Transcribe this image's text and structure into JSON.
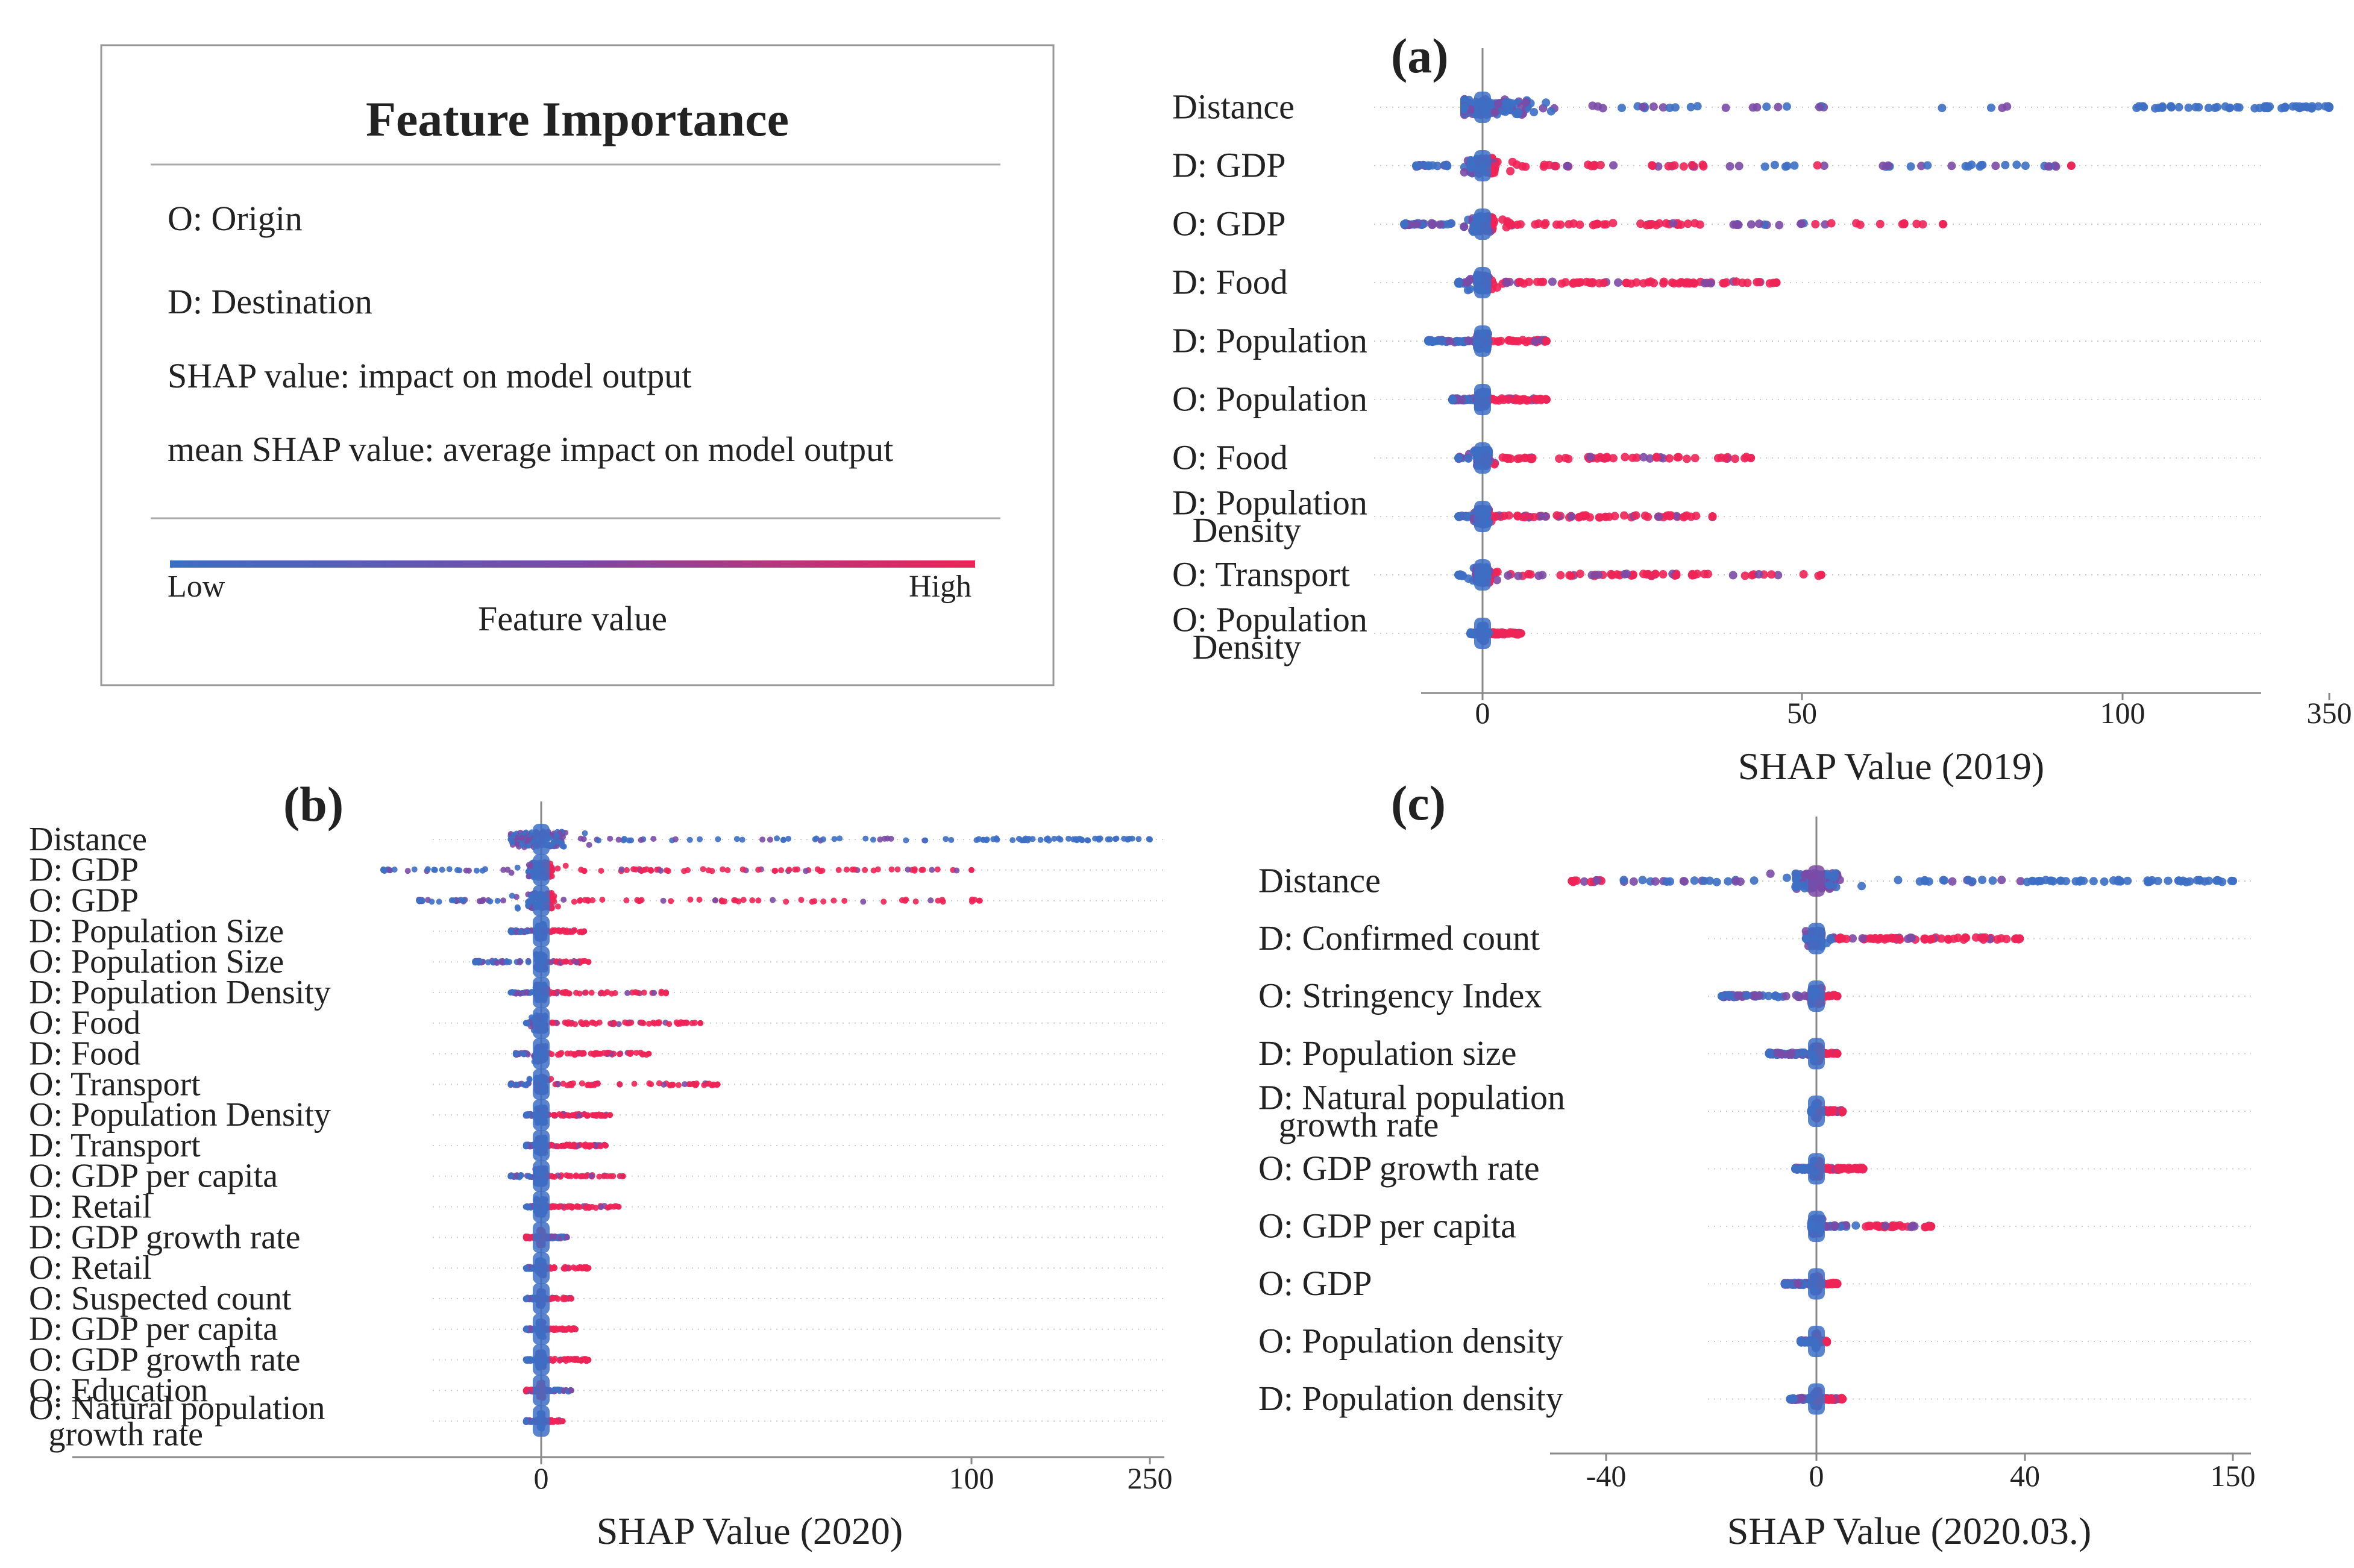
{
  "legend": {
    "title": "Feature Importance",
    "lines": [
      "O: Origin",
      "D: Destination",
      "SHAP value: impact on model output",
      "mean SHAP value: average impact on model output"
    ],
    "low_label": "Low",
    "high_label": "High",
    "color_label": "Feature value",
    "low_color": "#3d6fc4",
    "high_color": "#ee2457"
  },
  "chart_data": [
    {
      "id": "a",
      "type": "scatter",
      "subtype": "shap-beeswarm",
      "panel_label": "(a)",
      "xlabel": "SHAP Value (2019)",
      "x_ticks": [
        "0",
        "50",
        "100",
        "350"
      ],
      "features": [
        {
          "name": "Distance",
          "spread": [
            -3,
            350
          ],
          "density": 1.0,
          "hot": [],
          "cold_tail": [
            [
              100,
              350
            ]
          ]
        },
        {
          "name": "D: GDP",
          "spread": [
            -11,
            92
          ],
          "density": 0.9,
          "hot": [
            [
              1,
              38
            ],
            [
              50,
              54
            ],
            [
              91,
              92
            ]
          ],
          "cold_tail": []
        },
        {
          "name": "O: GDP",
          "spread": [
            -13,
            72
          ],
          "density": 0.9,
          "hot": [
            [
              1,
              37
            ],
            [
              51,
              72
            ]
          ],
          "cold_tail": []
        },
        {
          "name": "D: Food",
          "spread": [
            -4,
            46
          ],
          "density": 0.8,
          "hot": [
            [
              1,
              46
            ]
          ],
          "cold_tail": []
        },
        {
          "name": "D: Population",
          "spread": [
            -9,
            10
          ],
          "density": 0.7,
          "hot": [
            [
              1,
              10
            ]
          ],
          "cold_tail": []
        },
        {
          "name": "O: Population",
          "spread": [
            -5,
            10
          ],
          "density": 0.7,
          "hot": [
            [
              1,
              10
            ]
          ],
          "cold_tail": []
        },
        {
          "name": "O: Food",
          "spread": [
            -4,
            42
          ],
          "density": 0.7,
          "hot": [
            [
              1,
              42
            ]
          ],
          "cold_tail": []
        },
        {
          "name": "D: Population Density",
          "spread": [
            -4,
            36
          ],
          "density": 0.7,
          "hot": [
            [
              1,
              36
            ]
          ],
          "cold_tail": []
        },
        {
          "name": "O: Transport",
          "spread": [
            -4,
            53
          ],
          "density": 0.6,
          "hot": [
            [
              1,
              53
            ]
          ],
          "cold_tail": []
        },
        {
          "name": "O: Population Density",
          "spread": [
            -2,
            6
          ],
          "density": 0.5,
          "hot": [
            [
              1,
              6
            ]
          ],
          "cold_tail": []
        }
      ]
    },
    {
      "id": "b",
      "type": "scatter",
      "subtype": "shap-beeswarm",
      "panel_label": "(b)",
      "xlabel": "SHAP Value (2020)",
      "x_ticks": [
        "0",
        "100",
        "250"
      ],
      "features": [
        {
          "name": "Distance",
          "spread": [
            -6,
            250
          ],
          "density": 1.0,
          "hot": [],
          "cold_tail": [
            [
              100,
              250
            ]
          ]
        },
        {
          "name": "D: GDP",
          "spread": [
            -31,
            100
          ],
          "density": 0.9,
          "hot": [
            [
              1,
              100
            ]
          ],
          "cold_tail": []
        },
        {
          "name": "O: GDP",
          "spread": [
            -24,
            107
          ],
          "density": 0.9,
          "hot": [
            [
              1,
              107
            ]
          ],
          "cold_tail": []
        },
        {
          "name": "D: Population Size",
          "spread": [
            -6,
            10
          ],
          "density": 0.6,
          "hot": [
            [
              1,
              10
            ]
          ],
          "cold_tail": []
        },
        {
          "name": "O: Population Size",
          "spread": [
            -13,
            11
          ],
          "density": 0.6,
          "hot": [
            [
              1,
              11
            ]
          ],
          "cold_tail": []
        },
        {
          "name": "D: Population Density",
          "spread": [
            -6,
            29
          ],
          "density": 0.6,
          "hot": [
            [
              1,
              29
            ]
          ],
          "cold_tail": []
        },
        {
          "name": "O: Food",
          "spread": [
            -3,
            37
          ],
          "density": 0.6,
          "hot": [
            [
              1,
              37
            ]
          ],
          "cold_tail": []
        },
        {
          "name": "D: Food",
          "spread": [
            -5,
            25
          ],
          "density": 0.6,
          "hot": [
            [
              1,
              25
            ]
          ],
          "cold_tail": []
        },
        {
          "name": "O: Transport",
          "spread": [
            -6,
            41
          ],
          "density": 0.6,
          "hot": [
            [
              1,
              41
            ]
          ],
          "cold_tail": []
        },
        {
          "name": "O: Population Density",
          "spread": [
            -3,
            16
          ],
          "density": 0.5,
          "hot": [
            [
              1,
              16
            ]
          ],
          "cold_tail": []
        },
        {
          "name": "D: Transport",
          "spread": [
            -3,
            15
          ],
          "density": 0.5,
          "hot": [
            [
              1,
              15
            ]
          ],
          "cold_tail": []
        },
        {
          "name": "O: GDP per capita",
          "spread": [
            -6,
            19
          ],
          "density": 0.5,
          "hot": [
            [
              1,
              19
            ]
          ],
          "cold_tail": []
        },
        {
          "name": "D: Retail",
          "spread": [
            -3,
            18
          ],
          "density": 0.5,
          "hot": [
            [
              1,
              18
            ]
          ],
          "cold_tail": []
        },
        {
          "name": "D: GDP growth rate",
          "spread": [
            -3,
            6
          ],
          "density": 0.5,
          "hot": [
            [
              -3,
              1
            ]
          ],
          "cold_tail": []
        },
        {
          "name": "O: Retail",
          "spread": [
            -3,
            11
          ],
          "density": 0.5,
          "hot": [
            [
              1,
              11
            ]
          ],
          "cold_tail": []
        },
        {
          "name": "O: Suspected count",
          "spread": [
            -3,
            7
          ],
          "density": 0.5,
          "hot": [
            [
              1,
              7
            ]
          ],
          "cold_tail": []
        },
        {
          "name": "D: GDP per capita",
          "spread": [
            -3,
            8
          ],
          "density": 0.5,
          "hot": [
            [
              1,
              8
            ]
          ],
          "cold_tail": []
        },
        {
          "name": "O: GDP growth rate",
          "spread": [
            -3,
            11
          ],
          "density": 0.5,
          "hot": [
            [
              1,
              11
            ]
          ],
          "cold_tail": []
        },
        {
          "name": "O: Education",
          "spread": [
            -3,
            7
          ],
          "density": 0.5,
          "hot": [
            [
              -3,
              1
            ]
          ],
          "cold_tail": []
        },
        {
          "name": "O: Natural population growth rate",
          "spread": [
            -3,
            5
          ],
          "density": 0.5,
          "hot": [
            [
              1,
              5
            ]
          ],
          "cold_tail": []
        }
      ]
    },
    {
      "id": "c",
      "type": "scatter",
      "subtype": "shap-beeswarm",
      "panel_label": "(c)",
      "xlabel": "SHAP Value (2020.03.)",
      "x_ticks": [
        "-40",
        "0",
        "40",
        "150"
      ],
      "features": [
        {
          "name": "Distance",
          "spread": [
            -50,
            150
          ],
          "density": 1.0,
          "hot": [
            [
              -50,
              -38
            ]
          ],
          "cold_tail": [
            [
              40,
              150
            ]
          ]
        },
        {
          "name": "D: Confirmed count",
          "spread": [
            -2,
            39
          ],
          "density": 0.7,
          "hot": [
            [
              4,
              39
            ]
          ],
          "cold_tail": []
        },
        {
          "name": "O: Stringency Index",
          "spread": [
            -18,
            4
          ],
          "density": 0.6,
          "hot": [
            [
              0,
              4
            ]
          ],
          "cold_tail": []
        },
        {
          "name": "D: Population size",
          "spread": [
            -9,
            4
          ],
          "density": 0.6,
          "hot": [
            [
              0,
              4
            ]
          ],
          "cold_tail": []
        },
        {
          "name": "D: Natural population growth rate",
          "spread": [
            -1,
            5
          ],
          "density": 0.5,
          "hot": [
            [
              0,
              5
            ]
          ],
          "cold_tail": []
        },
        {
          "name": "O: GDP growth rate",
          "spread": [
            -4,
            9
          ],
          "density": 0.6,
          "hot": [
            [
              0,
              9
            ]
          ],
          "cold_tail": []
        },
        {
          "name": "O: GDP per capita",
          "spread": [
            -1,
            22
          ],
          "density": 0.5,
          "hot": [
            [
              8,
              22
            ]
          ],
          "cold_tail": []
        },
        {
          "name": "O: GDP",
          "spread": [
            -6,
            4
          ],
          "density": 0.6,
          "hot": [
            [
              0,
              4
            ]
          ],
          "cold_tail": []
        },
        {
          "name": "O: Population density",
          "spread": [
            -3,
            2
          ],
          "density": 0.5,
          "hot": [
            [
              0,
              2
            ]
          ],
          "cold_tail": []
        },
        {
          "name": "D: Population density",
          "spread": [
            -5,
            5
          ],
          "density": 0.5,
          "hot": [
            [
              0,
              5
            ]
          ],
          "cold_tail": []
        }
      ]
    }
  ]
}
